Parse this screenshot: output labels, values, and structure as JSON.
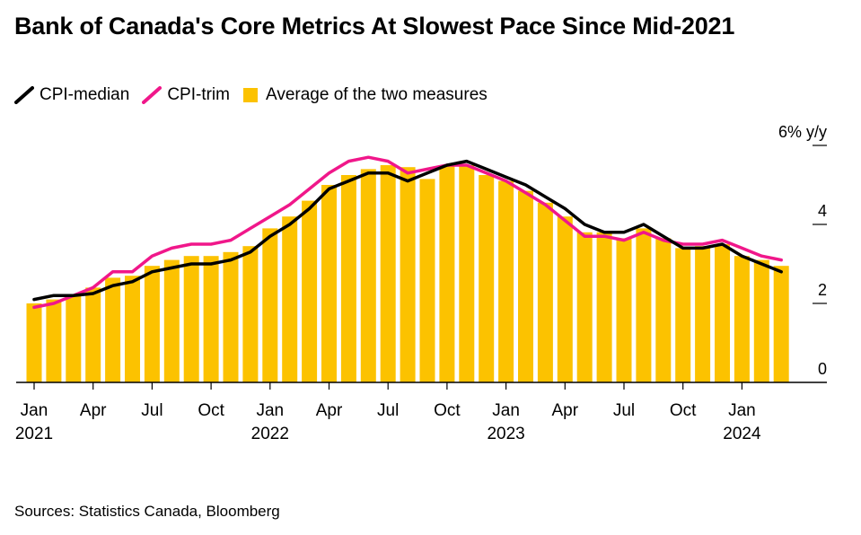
{
  "title": "Bank of Canada's Core Metrics At Slowest Pace Since Mid-2021",
  "source": "Sources: Statistics Canada, Bloomberg",
  "legend": [
    {
      "name": "CPI-median",
      "color": "#000000",
      "kind": "line"
    },
    {
      "name": "CPI-trim",
      "color": "#f0178a",
      "kind": "line"
    },
    {
      "name": "Average of the two measures",
      "color": "#fcc200",
      "kind": "bar"
    }
  ],
  "chart_data": {
    "type": "bar",
    "title": "Bank of Canada's Core Metrics At Slowest Pace Since Mid-2021",
    "y_unit_label": "6% y/y",
    "ylim": [
      0,
      6
    ],
    "y_ticks": [
      {
        "value": 0,
        "label": "0"
      },
      {
        "value": 2,
        "label": "2"
      },
      {
        "value": 4,
        "label": "4"
      },
      {
        "value": 6,
        "label": "6% y/y"
      }
    ],
    "x_ticks": [
      {
        "index": 0,
        "label": "Jan",
        "year": "2021"
      },
      {
        "index": 3,
        "label": "Apr",
        "year": ""
      },
      {
        "index": 6,
        "label": "Jul",
        "year": ""
      },
      {
        "index": 9,
        "label": "Oct",
        "year": ""
      },
      {
        "index": 12,
        "label": "Jan",
        "year": "2022"
      },
      {
        "index": 15,
        "label": "Apr",
        "year": ""
      },
      {
        "index": 18,
        "label": "Jul",
        "year": ""
      },
      {
        "index": 21,
        "label": "Oct",
        "year": ""
      },
      {
        "index": 24,
        "label": "Jan",
        "year": "2023"
      },
      {
        "index": 27,
        "label": "Apr",
        "year": ""
      },
      {
        "index": 30,
        "label": "Jul",
        "year": ""
      },
      {
        "index": 33,
        "label": "Oct",
        "year": ""
      },
      {
        "index": 36,
        "label": "Jan",
        "year": "2024"
      }
    ],
    "categories": [
      "2021-01",
      "2021-02",
      "2021-03",
      "2021-04",
      "2021-05",
      "2021-06",
      "2021-07",
      "2021-08",
      "2021-09",
      "2021-10",
      "2021-11",
      "2021-12",
      "2022-01",
      "2022-02",
      "2022-03",
      "2022-04",
      "2022-05",
      "2022-06",
      "2022-07",
      "2022-08",
      "2022-09",
      "2022-10",
      "2022-11",
      "2022-12",
      "2023-01",
      "2023-02",
      "2023-03",
      "2023-04",
      "2023-05",
      "2023-06",
      "2023-07",
      "2023-08",
      "2023-09",
      "2023-10",
      "2023-11",
      "2023-12",
      "2024-01",
      "2024-02",
      "2024-03"
    ],
    "series": [
      {
        "name": "Average of the two measures",
        "type": "bar",
        "color": "#fcc200",
        "values": [
          2.0,
          2.1,
          2.2,
          2.4,
          2.65,
          2.7,
          2.95,
          3.1,
          3.2,
          3.2,
          3.3,
          3.45,
          3.9,
          4.2,
          4.6,
          5.0,
          5.25,
          5.4,
          5.5,
          5.45,
          5.15,
          5.5,
          5.5,
          5.25,
          5.1,
          4.85,
          4.55,
          4.2,
          3.8,
          3.8,
          3.65,
          3.9,
          3.65,
          3.4,
          3.45,
          3.5,
          3.2,
          3.1,
          2.95
        ]
      },
      {
        "name": "CPI-median",
        "type": "line",
        "color": "#000000",
        "values": [
          2.1,
          2.2,
          2.2,
          2.25,
          2.45,
          2.55,
          2.8,
          2.9,
          3.0,
          3.0,
          3.1,
          3.3,
          3.7,
          4.0,
          4.4,
          4.9,
          5.1,
          5.3,
          5.3,
          5.1,
          5.3,
          5.5,
          5.6,
          5.4,
          5.2,
          5.0,
          4.7,
          4.4,
          4.0,
          3.8,
          3.8,
          4.0,
          3.7,
          3.4,
          3.4,
          3.5,
          3.2,
          3.0,
          2.8
        ]
      },
      {
        "name": "CPI-trim",
        "type": "line",
        "color": "#f0178a",
        "values": [
          1.9,
          2.0,
          2.2,
          2.4,
          2.8,
          2.8,
          3.2,
          3.4,
          3.5,
          3.5,
          3.6,
          3.9,
          4.2,
          4.5,
          4.9,
          5.3,
          5.6,
          5.7,
          5.6,
          5.3,
          5.4,
          5.5,
          5.5,
          5.3,
          5.1,
          4.8,
          4.5,
          4.1,
          3.7,
          3.7,
          3.6,
          3.8,
          3.6,
          3.5,
          3.5,
          3.6,
          3.4,
          3.2,
          3.1
        ]
      }
    ]
  }
}
